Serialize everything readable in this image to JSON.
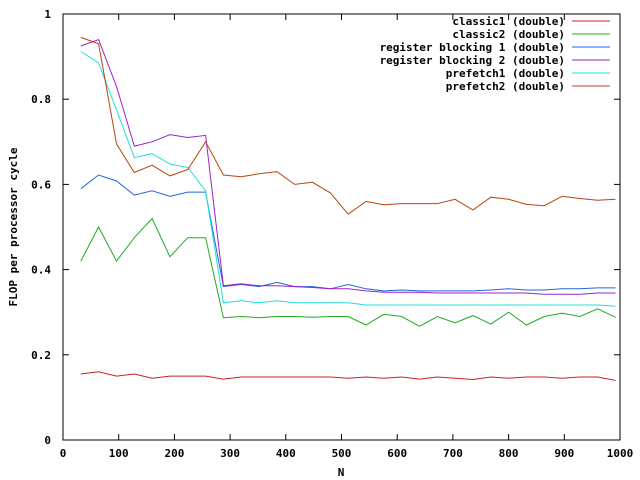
{
  "chart_data": {
    "type": "line",
    "title": "",
    "xlabel": "N",
    "ylabel": "FLOP per processor cycle",
    "xlim": [
      0,
      1000
    ],
    "ylim": [
      0,
      1
    ],
    "xticks": [
      0,
      100,
      200,
      300,
      400,
      500,
      600,
      700,
      800,
      900,
      1000
    ],
    "yticks": [
      0,
      0.2,
      0.4,
      0.6,
      0.8,
      1
    ],
    "ytick_labels": [
      "0",
      "0.2",
      "0.4",
      "0.6",
      "0.8",
      "1"
    ],
    "grid": false,
    "legend_position": "top-right",
    "x": [
      32,
      64,
      96,
      128,
      160,
      192,
      224,
      256,
      288,
      320,
      352,
      384,
      416,
      448,
      480,
      512,
      544,
      576,
      608,
      640,
      672,
      704,
      736,
      768,
      800,
      832,
      864,
      896,
      928,
      960,
      992
    ],
    "series": [
      {
        "name": "classic1 (double)",
        "color": "#cc2222",
        "values": [
          0.155,
          0.16,
          0.15,
          0.155,
          0.145,
          0.15,
          0.15,
          0.15,
          0.143,
          0.148,
          0.148,
          0.148,
          0.148,
          0.148,
          0.148,
          0.145,
          0.148,
          0.145,
          0.148,
          0.143,
          0.148,
          0.145,
          0.142,
          0.148,
          0.145,
          0.148,
          0.148,
          0.145,
          0.148,
          0.148,
          0.14
        ]
      },
      {
        "name": "classic2 (double)",
        "color": "#22aa22",
        "values": [
          0.42,
          0.5,
          0.42,
          0.475,
          0.52,
          0.43,
          0.475,
          0.475,
          0.287,
          0.29,
          0.287,
          0.29,
          0.29,
          0.288,
          0.29,
          0.29,
          0.27,
          0.295,
          0.29,
          0.267,
          0.29,
          0.275,
          0.292,
          0.272,
          0.3,
          0.27,
          0.29,
          0.298,
          0.29,
          0.308,
          0.288
        ]
      },
      {
        "name": "register blocking 1 (double)",
        "color": "#2266dd",
        "values": [
          0.59,
          0.622,
          0.608,
          0.575,
          0.585,
          0.572,
          0.582,
          0.582,
          0.36,
          0.365,
          0.36,
          0.37,
          0.36,
          0.36,
          0.355,
          0.365,
          0.355,
          0.35,
          0.352,
          0.35,
          0.35,
          0.35,
          0.35,
          0.352,
          0.355,
          0.352,
          0.352,
          0.355,
          0.355,
          0.357,
          0.357
        ]
      },
      {
        "name": "register blocking 2 (double)",
        "color": "#9922cc",
        "values": [
          0.925,
          0.94,
          0.83,
          0.69,
          0.7,
          0.717,
          0.71,
          0.715,
          0.362,
          0.367,
          0.362,
          0.362,
          0.36,
          0.358,
          0.355,
          0.355,
          0.35,
          0.347,
          0.347,
          0.347,
          0.345,
          0.345,
          0.345,
          0.345,
          0.345,
          0.345,
          0.342,
          0.342,
          0.342,
          0.345,
          0.345
        ]
      },
      {
        "name": "prefetch1 (double)",
        "color": "#22dddd",
        "values": [
          0.912,
          0.885,
          0.775,
          0.663,
          0.672,
          0.648,
          0.64,
          0.585,
          0.322,
          0.327,
          0.322,
          0.327,
          0.322,
          0.322,
          0.322,
          0.322,
          0.317,
          0.317,
          0.317,
          0.317,
          0.317,
          0.317,
          0.317,
          0.317,
          0.317,
          0.317,
          0.317,
          0.317,
          0.317,
          0.317,
          0.314
        ]
      },
      {
        "name": "prefetch2 (double)",
        "color": "#bb4411",
        "values": [
          0.945,
          0.93,
          0.695,
          0.628,
          0.645,
          0.62,
          0.635,
          0.7,
          0.622,
          0.618,
          0.625,
          0.63,
          0.6,
          0.605,
          0.58,
          0.53,
          0.56,
          0.552,
          0.555,
          0.555,
          0.555,
          0.565,
          0.54,
          0.57,
          0.565,
          0.553,
          0.55,
          0.572,
          0.567,
          0.563,
          0.565
        ]
      }
    ]
  }
}
